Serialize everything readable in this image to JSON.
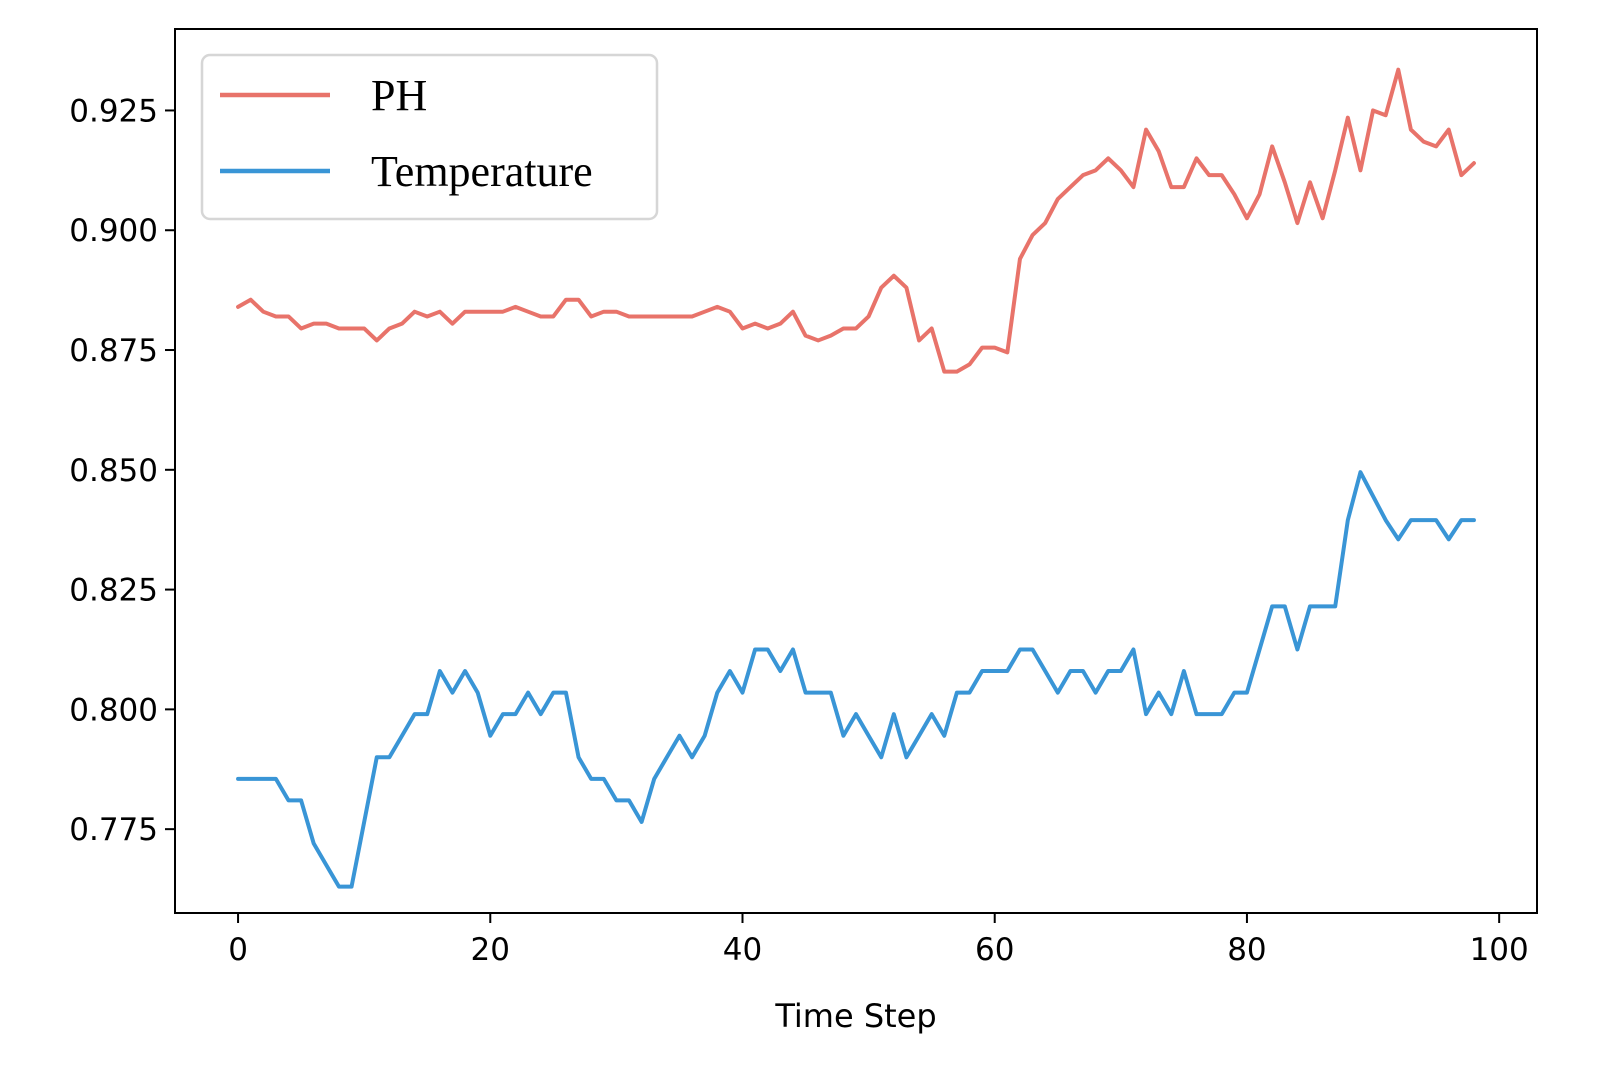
{
  "chart_data": {
    "type": "line",
    "title": "",
    "xlabel": "Time Step",
    "ylabel": "",
    "xlim": [
      -5,
      103
    ],
    "ylim": [
      0.7575,
      0.942
    ],
    "x_ticks": [
      0,
      20,
      40,
      60,
      80,
      100
    ],
    "y_ticks": [
      0.775,
      0.8,
      0.825,
      0.85,
      0.875,
      0.9,
      0.925
    ],
    "x_tick_labels": [
      "0",
      "20",
      "40",
      "60",
      "80",
      "100"
    ],
    "y_tick_labels": [
      "0.775",
      "0.800",
      "0.825",
      "0.850",
      "0.875",
      "0.900",
      "0.925"
    ],
    "grid": false,
    "legend_position": "top-left",
    "series": [
      {
        "name": "PH",
        "color": "#e8736a",
        "x": [
          0,
          1,
          2,
          3,
          4,
          5,
          6,
          7,
          8,
          9,
          10,
          11,
          12,
          13,
          14,
          15,
          16,
          17,
          18,
          19,
          20,
          21,
          22,
          23,
          24,
          25,
          26,
          27,
          28,
          29,
          30,
          31,
          32,
          33,
          34,
          35,
          36,
          37,
          38,
          39,
          40,
          41,
          42,
          43,
          44,
          45,
          46,
          47,
          48,
          49,
          50,
          51,
          52,
          53,
          54,
          55,
          56,
          57,
          58,
          59,
          60,
          61,
          62,
          63,
          64,
          65,
          66,
          67,
          68,
          69,
          70,
          71,
          72,
          73,
          74,
          75,
          76,
          77,
          78,
          79,
          80,
          81,
          82,
          83,
          84,
          85,
          86,
          87,
          88,
          89,
          90,
          91,
          92,
          93,
          94,
          95,
          96,
          97,
          98
        ],
        "values": [
          0.884,
          0.8855,
          0.883,
          0.882,
          0.882,
          0.8795,
          0.8805,
          0.8805,
          0.8795,
          0.8795,
          0.8795,
          0.877,
          0.8795,
          0.8805,
          0.883,
          0.882,
          0.883,
          0.8805,
          0.883,
          0.883,
          0.883,
          0.883,
          0.884,
          0.883,
          0.882,
          0.882,
          0.8855,
          0.8855,
          0.882,
          0.883,
          0.883,
          0.882,
          0.882,
          0.882,
          0.882,
          0.882,
          0.882,
          0.883,
          0.884,
          0.883,
          0.8795,
          0.8805,
          0.8795,
          0.8805,
          0.883,
          0.878,
          0.877,
          0.878,
          0.8795,
          0.8795,
          0.882,
          0.888,
          0.8905,
          0.888,
          0.877,
          0.8795,
          0.8705,
          0.8705,
          0.872,
          0.8755,
          0.8755,
          0.8745,
          0.894,
          0.899,
          0.9015,
          0.9065,
          0.909,
          0.9115,
          0.9125,
          0.915,
          0.9125,
          0.909,
          0.921,
          0.9165,
          0.909,
          0.909,
          0.915,
          0.9115,
          0.9115,
          0.9075,
          0.9025,
          0.9075,
          0.9175,
          0.91,
          0.9015,
          0.91,
          0.9025,
          0.9125,
          0.9235,
          0.9125,
          0.925,
          0.924,
          0.9335,
          0.921,
          0.9185,
          0.9175,
          0.921,
          0.9115,
          0.914
        ]
      },
      {
        "name": "Temperature",
        "color": "#3995d6",
        "x": [
          0,
          1,
          2,
          3,
          4,
          5,
          6,
          7,
          8,
          9,
          10,
          11,
          12,
          13,
          14,
          15,
          16,
          17,
          18,
          19,
          20,
          21,
          22,
          23,
          24,
          25,
          26,
          27,
          28,
          29,
          30,
          31,
          32,
          33,
          34,
          35,
          36,
          37,
          38,
          39,
          40,
          41,
          42,
          43,
          44,
          45,
          46,
          47,
          48,
          49,
          50,
          51,
          52,
          53,
          54,
          55,
          56,
          57,
          58,
          59,
          60,
          61,
          62,
          63,
          64,
          65,
          66,
          67,
          68,
          69,
          70,
          71,
          72,
          73,
          74,
          75,
          76,
          77,
          78,
          79,
          80,
          81,
          82,
          83,
          84,
          85,
          86,
          87,
          88,
          89,
          90,
          91,
          92,
          93,
          94,
          95,
          96,
          97,
          98
        ],
        "values": [
          0.7855,
          0.7855,
          0.7855,
          0.7855,
          0.781,
          0.781,
          0.772,
          0.7675,
          0.763,
          0.763,
          0.7765,
          0.79,
          0.79,
          0.7945,
          0.799,
          0.799,
          0.808,
          0.8035,
          0.808,
          0.8035,
          0.7945,
          0.799,
          0.799,
          0.8035,
          0.799,
          0.8035,
          0.8035,
          0.79,
          0.7855,
          0.7855,
          0.781,
          0.781,
          0.7765,
          0.7855,
          0.79,
          0.7945,
          0.79,
          0.7945,
          0.8035,
          0.808,
          0.8035,
          0.8125,
          0.8125,
          0.808,
          0.8125,
          0.8035,
          0.8035,
          0.8035,
          0.7945,
          0.799,
          0.7945,
          0.79,
          0.799,
          0.79,
          0.7945,
          0.799,
          0.7945,
          0.8035,
          0.8035,
          0.808,
          0.808,
          0.808,
          0.8125,
          0.8125,
          0.808,
          0.8035,
          0.808,
          0.808,
          0.8035,
          0.808,
          0.808,
          0.8125,
          0.799,
          0.8035,
          0.799,
          0.808,
          0.799,
          0.799,
          0.799,
          0.8035,
          0.8035,
          0.8125,
          0.8215,
          0.8215,
          0.8125,
          0.8215,
          0.8215,
          0.8215,
          0.8395,
          0.8495,
          0.8445,
          0.8395,
          0.8355,
          0.8395,
          0.8395,
          0.8395,
          0.8355,
          0.8395,
          0.8395
        ]
      }
    ]
  }
}
